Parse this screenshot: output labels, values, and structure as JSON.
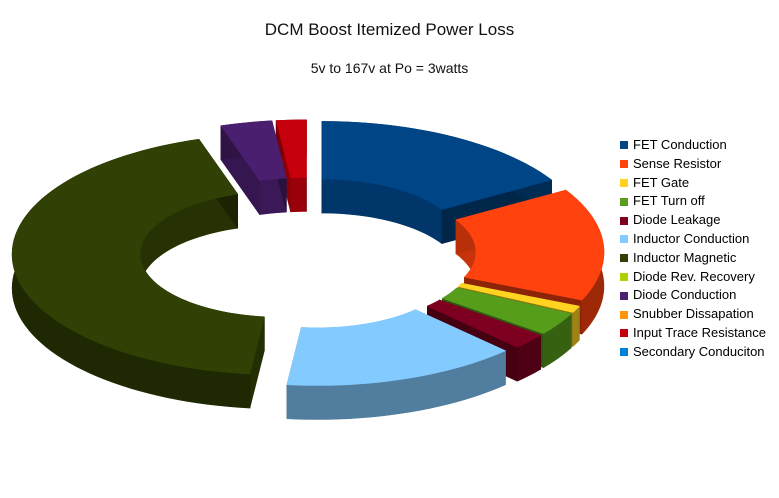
{
  "chart_data": {
    "type": "pie",
    "variant": "3d-exploded-donut",
    "title": "DCM Boost Itemized Power Loss",
    "subtitle": "5v to 167v at Po = 3watts",
    "legend_position": "right",
    "series": [
      {
        "name": "FET Conduction",
        "value": 16.4,
        "color": "#004586"
      },
      {
        "name": "Sense Resistor",
        "value": 15.1,
        "color": "#ff420e"
      },
      {
        "name": "FET Gate",
        "value": 0.9,
        "color": "#ffd320"
      },
      {
        "name": "FET Turn off",
        "value": 3.1,
        "color": "#579d1c"
      },
      {
        "name": "Diode Leakage",
        "value": 2.1,
        "color": "#7e0021"
      },
      {
        "name": "Inductor Conduction",
        "value": 14.2,
        "color": "#83caff"
      },
      {
        "name": "Inductor Magnetic",
        "value": 43.3,
        "color": "#314004"
      },
      {
        "name": "Diode Rev. Recovery",
        "value": 0,
        "color": "#aecf00"
      },
      {
        "name": "Diode Conduction",
        "value": 3.1,
        "color": "#4b1f6f"
      },
      {
        "name": "Snubber Dissapation",
        "value": 0,
        "color": "#ff950e"
      },
      {
        "name": "Input Trace Resistance",
        "value": 1.8,
        "color": "#c5000b"
      },
      {
        "name": "Secondary Conduciton",
        "value": 0,
        "color": "#0084d1"
      }
    ]
  }
}
